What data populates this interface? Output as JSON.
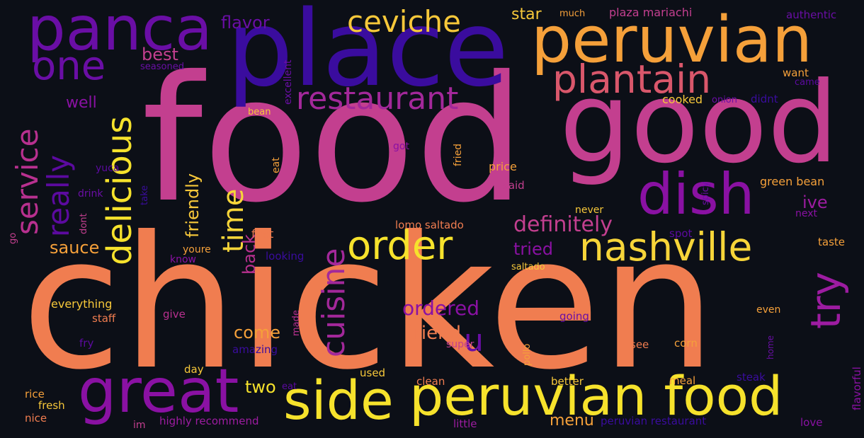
{
  "background": "#0c0f17",
  "words": [
    {
      "text": "chicken",
      "color": "#f07d50"
    },
    {
      "text": "food",
      "color": "#c33f8f"
    },
    {
      "text": "good",
      "color": "#c33f8f"
    },
    {
      "text": "place",
      "color": "#3a0c9e"
    },
    {
      "text": "peruvian",
      "color": "#f5a03a"
    },
    {
      "text": "peruvian food",
      "color": "#f6e22c"
    },
    {
      "text": "side",
      "color": "#f6e22c"
    },
    {
      "text": "panca",
      "color": "#6a0ea5"
    },
    {
      "text": "dish",
      "color": "#8a11a3"
    },
    {
      "text": "great",
      "color": "#8a11a3"
    },
    {
      "text": "plantain",
      "color": "#d9576b"
    },
    {
      "text": "nashville",
      "color": "#f7d539"
    },
    {
      "text": "order",
      "color": "#f6e22c"
    },
    {
      "text": "one",
      "color": "#6a0ea5"
    },
    {
      "text": "ceviche",
      "color": "#f7c83a"
    },
    {
      "text": "restaurant",
      "color": "#a3289a"
    },
    {
      "text": "delicious",
      "color": "#f6e22c"
    },
    {
      "text": "service",
      "color": "#b8308f"
    },
    {
      "text": "really",
      "color": "#5c0aa0"
    },
    {
      "text": "try",
      "color": "#9d1ca1"
    },
    {
      "text": "cuisine",
      "color": "#a3289a"
    },
    {
      "text": "time",
      "color": "#f7d539"
    },
    {
      "text": "u",
      "color": "#6a0ea5"
    },
    {
      "text": "definitely",
      "color": "#c33f8f"
    },
    {
      "text": "friendly",
      "color": "#f7c83a"
    },
    {
      "text": "back",
      "color": "#b8308f"
    },
    {
      "text": "ordered",
      "color": "#8a11a3"
    },
    {
      "text": "friend",
      "color": "#f07d50"
    },
    {
      "text": "tried",
      "color": "#8a11a3"
    },
    {
      "text": "sauce",
      "color": "#f5a03a"
    },
    {
      "text": "come",
      "color": "#f5a03a"
    },
    {
      "text": "best",
      "color": "#c33f8f"
    },
    {
      "text": "flavor",
      "color": "#6a0ea5"
    },
    {
      "text": "well",
      "color": "#8a11a3"
    },
    {
      "text": "star",
      "color": "#f7c83a"
    },
    {
      "text": "two",
      "color": "#f6e22c"
    },
    {
      "text": "menu",
      "color": "#f5a03a"
    },
    {
      "text": "ive",
      "color": "#9d1ca1"
    },
    {
      "text": "much",
      "color": "#f5a03a"
    },
    {
      "text": "plaza mariachi",
      "color": "#c33f8f"
    },
    {
      "text": "authentic",
      "color": "#6a0ea5"
    },
    {
      "text": "seasoned",
      "color": "#6a0ea5"
    },
    {
      "text": "excellent",
      "color": "#6a0ea5"
    },
    {
      "text": "want",
      "color": "#f5a03a"
    },
    {
      "text": "came",
      "color": "#5c0aa0"
    },
    {
      "text": "cooked",
      "color": "#f7c83a"
    },
    {
      "text": "onion",
      "color": "#6a0ea5"
    },
    {
      "text": "didnt",
      "color": "#3a0c9e"
    },
    {
      "text": "bean",
      "color": "#f7c83a"
    },
    {
      "text": "got",
      "color": "#8a11a3"
    },
    {
      "text": "eat",
      "color": "#f5a03a"
    },
    {
      "text": "fried",
      "color": "#f5a03a"
    },
    {
      "text": "price",
      "color": "#f5a03a"
    },
    {
      "text": "said",
      "color": "#c33f8f"
    },
    {
      "text": "green bean",
      "color": "#f5a03a"
    },
    {
      "text": "yuca",
      "color": "#5c0aa0"
    },
    {
      "text": "drink",
      "color": "#6a0ea5"
    },
    {
      "text": "take",
      "color": "#3a0c9e"
    },
    {
      "text": "spicy",
      "color": "#6a0ea5"
    },
    {
      "text": "never",
      "color": "#f7c83a"
    },
    {
      "text": "next",
      "color": "#8a11a3"
    },
    {
      "text": "dont",
      "color": "#c33f8f"
    },
    {
      "text": "go",
      "color": "#c33f8f"
    },
    {
      "text": "first",
      "color": "#f07d50"
    },
    {
      "text": "lomo saltado",
      "color": "#f07d50"
    },
    {
      "text": "spot",
      "color": "#5c0aa0"
    },
    {
      "text": "taste",
      "color": "#f5a03a"
    },
    {
      "text": "youre",
      "color": "#f5a03a"
    },
    {
      "text": "know",
      "color": "#8a11a3"
    },
    {
      "text": "looking",
      "color": "#3a0c9e"
    },
    {
      "text": "saltado",
      "color": "#f7c83a"
    },
    {
      "text": "everything",
      "color": "#f7c83a"
    },
    {
      "text": "staff",
      "color": "#f07d50"
    },
    {
      "text": "give",
      "color": "#b8308f"
    },
    {
      "text": "made",
      "color": "#b8308f"
    },
    {
      "text": "going",
      "color": "#6a0ea5"
    },
    {
      "text": "even",
      "color": "#f5a03a"
    },
    {
      "text": "fry",
      "color": "#5c0aa0"
    },
    {
      "text": "amazing",
      "color": "#3a0c9e"
    },
    {
      "text": "super",
      "color": "#c33f8f"
    },
    {
      "text": "pollo",
      "color": "#f5a03a"
    },
    {
      "text": "see",
      "color": "#f07d50"
    },
    {
      "text": "corn",
      "color": "#f5a03a"
    },
    {
      "text": "home",
      "color": "#6a0ea5"
    },
    {
      "text": "flavorful",
      "color": "#8a11a3"
    },
    {
      "text": "day",
      "color": "#f7c83a"
    },
    {
      "text": "used",
      "color": "#f7c83a"
    },
    {
      "text": "steak",
      "color": "#3a0c9e"
    },
    {
      "text": "clean",
      "color": "#f07d50"
    },
    {
      "text": "better",
      "color": "#f7c83a"
    },
    {
      "text": "meal",
      "color": "#f5a03a"
    },
    {
      "text": "rice",
      "color": "#f5a03a"
    },
    {
      "text": "fresh",
      "color": "#f7c83a"
    },
    {
      "text": "eat",
      "color": "#5c0aa0"
    },
    {
      "text": "nice",
      "color": "#f07d50"
    },
    {
      "text": "im",
      "color": "#c33f8f"
    },
    {
      "text": "highly recommend",
      "color": "#9d1ca1"
    },
    {
      "text": "little",
      "color": "#9d1ca1"
    },
    {
      "text": "peruvian restaurant",
      "color": "#3a0c9e"
    },
    {
      "text": "love",
      "color": "#8a11a3"
    }
  ]
}
